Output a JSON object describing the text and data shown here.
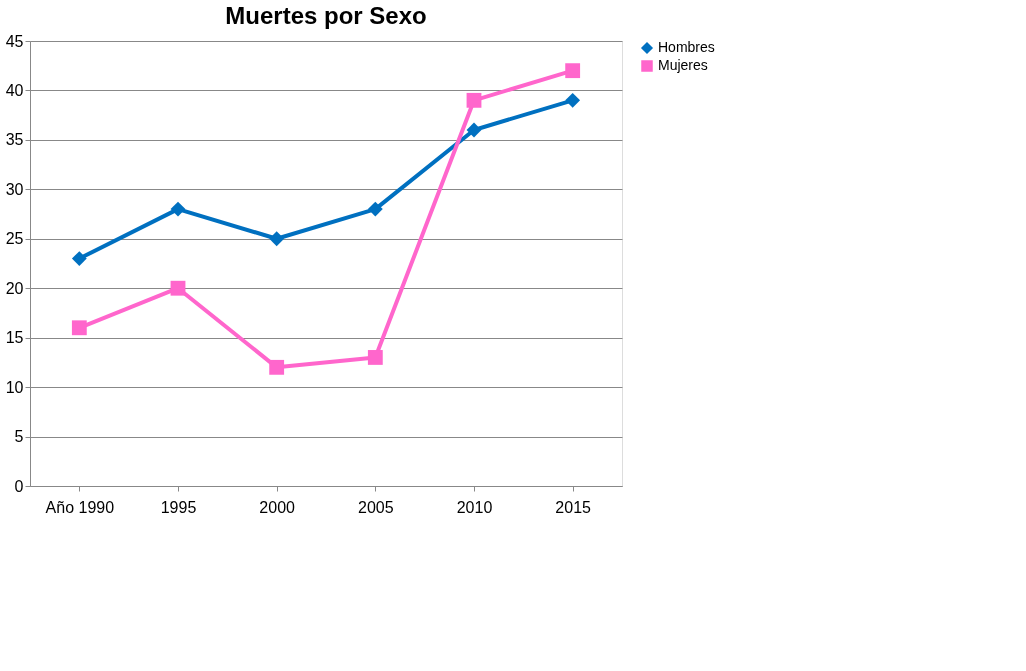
{
  "chart_data": {
    "type": "line",
    "title": "Muertes por Sexo",
    "categories": [
      "Año 1990",
      "1995",
      "2000",
      "2005",
      "2010",
      "2015"
    ],
    "series": [
      {
        "name": "Hombres",
        "color": "#0070c0",
        "marker": "diamond",
        "values": [
          23,
          28,
          25,
          28,
          36,
          39
        ]
      },
      {
        "name": "Mujeres",
        "color": "#ff66cc",
        "marker": "square",
        "values": [
          16,
          20,
          12,
          13,
          39,
          42
        ]
      }
    ],
    "ylim": [
      0,
      45
    ],
    "yticks": [
      0,
      5,
      10,
      15,
      20,
      25,
      30,
      35,
      40,
      45
    ],
    "grid": "y",
    "legend": "right",
    "line_style": "solid"
  }
}
